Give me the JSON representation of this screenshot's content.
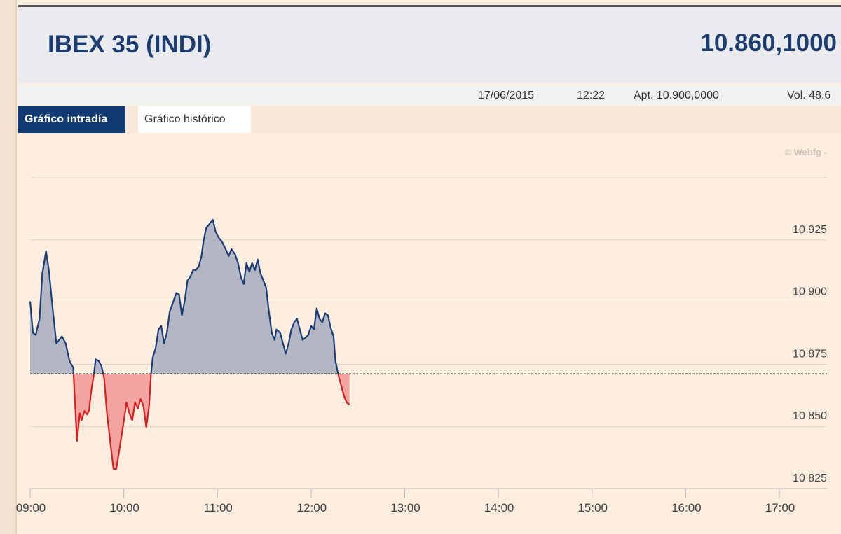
{
  "header": {
    "title": "IBEX 35 (INDI)",
    "price": "10.860,1000"
  },
  "info": {
    "date": "17/06/2015",
    "time": "12:22",
    "open": "Apt. 10.900,0000",
    "volume": "Vol. 48.6"
  },
  "tabs": [
    "Gráfico intradía",
    "Gráfico histórico"
  ],
  "chart_data": {
    "type": "line",
    "watermark": "© Webfg -",
    "x": [
      9.0,
      9.03,
      9.06,
      9.1,
      9.13,
      9.17,
      9.2,
      9.24,
      9.28,
      9.31,
      9.34,
      9.38,
      9.42,
      9.46,
      9.5,
      9.53,
      9.55,
      9.58,
      9.61,
      9.63,
      9.65,
      9.68,
      9.7,
      9.73,
      9.76,
      9.79,
      9.82,
      9.85,
      9.89,
      9.92,
      9.95,
      9.99,
      10.03,
      10.06,
      10.09,
      10.12,
      10.15,
      10.18,
      10.21,
      10.24,
      10.27,
      10.29,
      10.31,
      10.34,
      10.37,
      10.4,
      10.43,
      10.46,
      10.49,
      10.53,
      10.56,
      10.59,
      10.62,
      10.65,
      10.68,
      10.71,
      10.74,
      10.77,
      10.8,
      10.83,
      10.85,
      10.88,
      10.91,
      10.95,
      10.98,
      11.01,
      11.05,
      11.09,
      11.12,
      11.15,
      11.19,
      11.22,
      11.25,
      11.28,
      11.31,
      11.34,
      11.37,
      11.4,
      11.43,
      11.46,
      11.49,
      11.52,
      11.55,
      11.58,
      11.61,
      11.63,
      11.67,
      11.7,
      11.73,
      11.76,
      11.79,
      11.82,
      11.85,
      11.88,
      11.91,
      11.94,
      11.97,
      12.0,
      12.03,
      12.06,
      12.09,
      12.12,
      12.15,
      12.18,
      12.21,
      12.24,
      12.26,
      12.29,
      12.32,
      12.35,
      12.38,
      12.41
    ],
    "series": [
      {
        "name": "IBEX 35",
        "color": "#1c3c78",
        "color_below": "#d81f1f",
        "fill": "#b3b7c3",
        "fill_below": "#f4a5a1",
        "values": [
          10900.3,
          10887.6,
          10886.8,
          10893.3,
          10911.5,
          10920.5,
          10912.9,
          10897.5,
          10883.4,
          10884.8,
          10886.2,
          10883.4,
          10876.4,
          10873.6,
          10844.1,
          10855.3,
          10852.5,
          10856.2,
          10854.8,
          10856.7,
          10863.8,
          10870.8,
          10877.0,
          10876.4,
          10874.4,
          10869.4,
          10855.3,
          10845.5,
          10832.9,
          10832.9,
          10839.9,
          10849.7,
          10859.6,
          10855.3,
          10852.5,
          10859.6,
          10857.3,
          10861.0,
          10858.1,
          10849.7,
          10858.1,
          10870.8,
          10877.8,
          10881.5,
          10889.0,
          10890.4,
          10883.4,
          10887.6,
          10896.1,
          10900.3,
          10903.7,
          10903.1,
          10894.7,
          10900.3,
          10908.7,
          10910.1,
          10912.9,
          10912.9,
          10914.3,
          10918.5,
          10924.2,
          10929.8,
          10931.2,
          10933.1,
          10928.4,
          10926.1,
          10924.2,
          10921.1,
          10918.5,
          10921.3,
          10919.1,
          10915.7,
          10910.1,
          10907.3,
          10915.7,
          10912.1,
          10915.7,
          10912.9,
          10917.1,
          10911.5,
          10908.7,
          10905.9,
          10896.1,
          10887.6,
          10884.8,
          10889.0,
          10887.6,
          10883.4,
          10879.2,
          10883.4,
          10889.0,
          10891.9,
          10893.3,
          10889.0,
          10884.8,
          10885.7,
          10886.8,
          10890.4,
          10889.0,
          10897.5,
          10893.3,
          10891.9,
          10895.5,
          10894.7,
          10889.6,
          10886.2,
          10876.4,
          10870.8,
          10866.6,
          10862.4,
          10859.6,
          10858.7
        ]
      }
    ],
    "baseline": 10871.1,
    "xlim": [
      9,
      17
    ],
    "xticks": [
      {
        "value": 9,
        "label": "09:00"
      },
      {
        "value": 10,
        "label": "10:00"
      },
      {
        "value": 11,
        "label": "11:00"
      },
      {
        "value": 12,
        "label": "12:00"
      },
      {
        "value": 13,
        "label": "13:00"
      },
      {
        "value": 14,
        "label": "14:00"
      },
      {
        "value": 15,
        "label": "15:00"
      },
      {
        "value": 16,
        "label": "16:00"
      },
      {
        "value": 17,
        "label": "17:00"
      }
    ],
    "ylim": [
      10825,
      10950
    ],
    "yticks": [
      {
        "value": 10825,
        "label": "10 825"
      },
      {
        "value": 10850,
        "label": "10 850"
      },
      {
        "value": 10875,
        "label": "10 875"
      },
      {
        "value": 10900,
        "label": "10 900"
      },
      {
        "value": 10925,
        "label": "10 925"
      }
    ],
    "grid": true
  }
}
